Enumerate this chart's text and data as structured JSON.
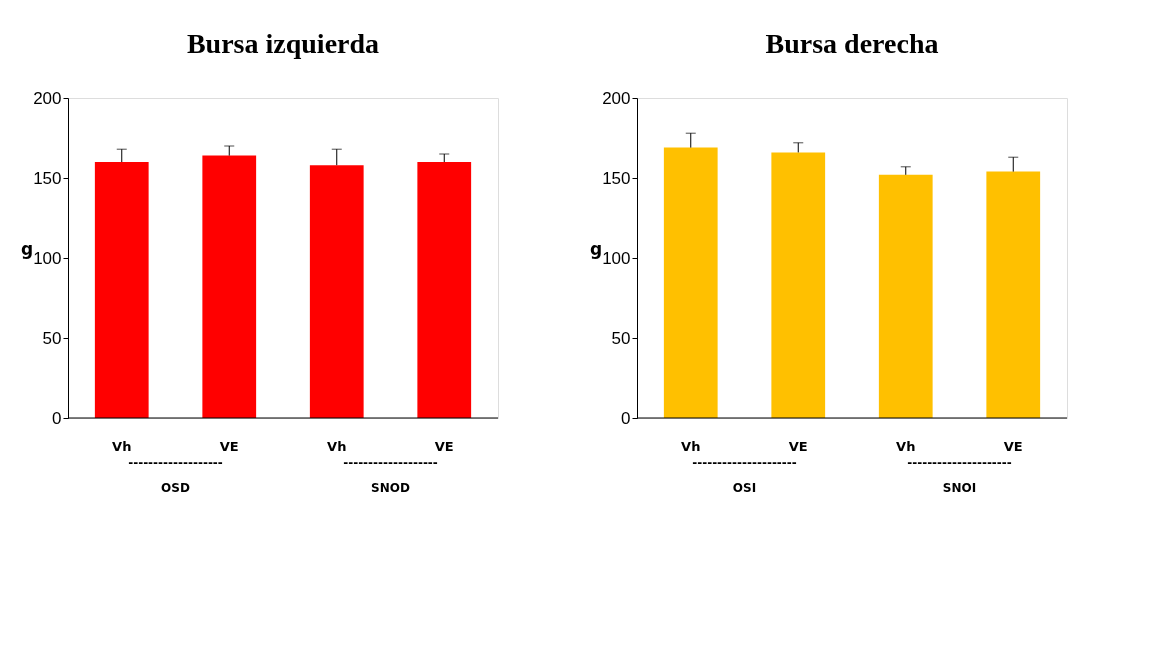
{
  "chart_data": [
    {
      "type": "bar",
      "title": "Bursa izquierda",
      "ylabel": "g",
      "categories": [
        "Vh",
        "VE",
        "Vh",
        "VE"
      ],
      "values": [
        160,
        164,
        158,
        160
      ],
      "errors": [
        8,
        6,
        10,
        5
      ],
      "color": "#ff0000",
      "ylim": [
        0,
        200
      ],
      "yticks": [
        0,
        50,
        100,
        150,
        200
      ],
      "grid": false,
      "annotations": [
        "-------------------",
        "OSD",
        "-------------------",
        "SNOD"
      ]
    },
    {
      "type": "bar",
      "title": "Bursa derecha",
      "ylabel": "g",
      "categories": [
        "Vh",
        "VE",
        "Vh",
        "VE"
      ],
      "values": [
        169,
        166,
        152,
        154
      ],
      "errors": [
        9,
        6,
        5,
        9
      ],
      "color": "#ffc000",
      "ylim": [
        0,
        200
      ],
      "yticks": [
        0,
        50,
        100,
        150,
        200
      ],
      "grid": false,
      "annotations": [
        "---------------------",
        "OSI",
        "---------------------",
        "SNOI"
      ]
    }
  ]
}
